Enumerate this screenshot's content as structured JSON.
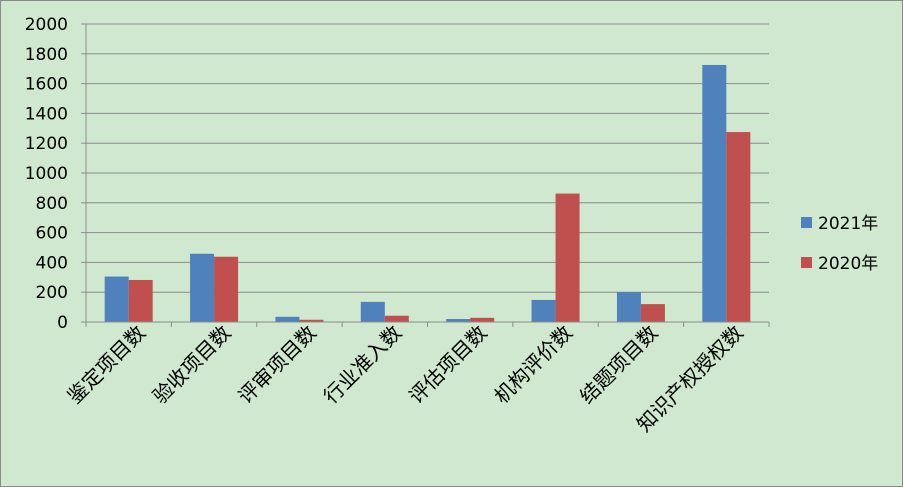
{
  "chart_data": {
    "type": "bar",
    "categories": [
      "鉴定项目数",
      "验收项目数",
      "评审项目数",
      "行业准入数",
      "评估项目数",
      "机构评价数",
      "结题项目数",
      "知识产权授权数"
    ],
    "series": [
      {
        "name": "2021年",
        "color": "#4f81bd",
        "values": [
          305,
          458,
          35,
          135,
          20,
          148,
          200,
          1725
        ]
      },
      {
        "name": "2020年",
        "color": "#c0504d",
        "values": [
          282,
          438,
          15,
          42,
          28,
          862,
          120,
          1275
        ]
      }
    ],
    "yticks": [
      "0",
      "200",
      "400",
      "600",
      "800",
      "1000",
      "1200",
      "1400",
      "1600",
      "1800",
      "2000"
    ],
    "ylim": [
      0,
      2000
    ],
    "grid": true,
    "legend_position": "right",
    "background": "#cfe8cf"
  }
}
